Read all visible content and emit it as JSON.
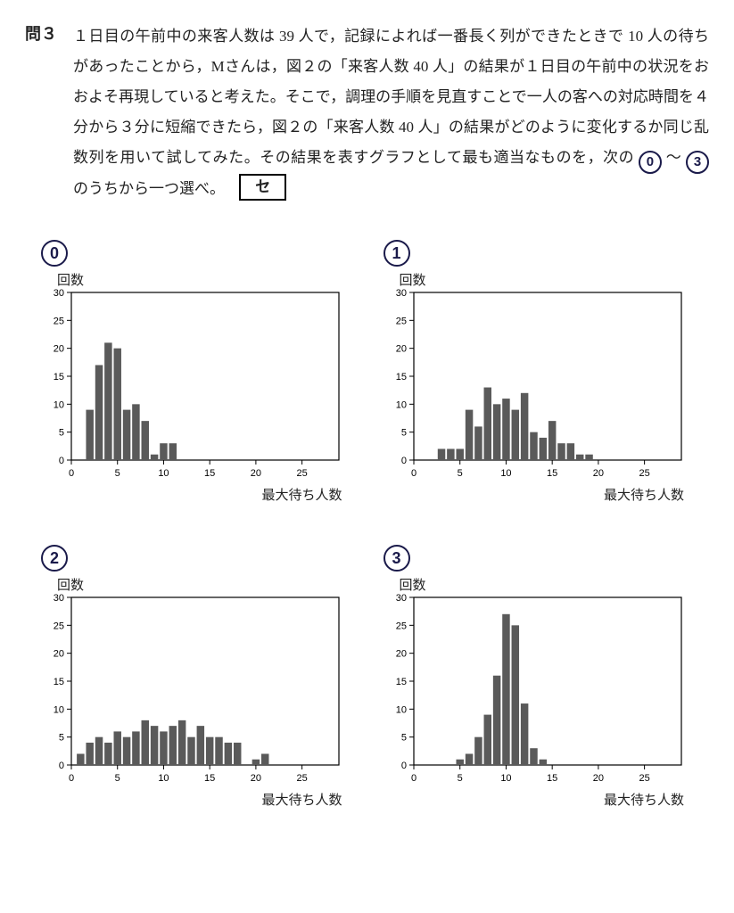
{
  "problem": {
    "label": "問３",
    "text_parts": [
      "１日目の午前中の来客人数は 39 人で，記録によれば一番長く列ができたときで 10 人の待ちがあったことから，Mさんは，図２の「来客人数 40 人」の結果が１日目の午前中の状況をおおよそ再現していると考えた。そこで，調理の手順を見直すことで一人の客への対応時間を４分から３分に短縮できたら，図２の「来客人数 40 人」の結果がどのように変化するか同じ乱数列を用いて試してみた。その結果を表すグラフとして最も適当なものを，次の ",
      " ～ ",
      " のうちから一つ選べ。"
    ],
    "option_start": "0",
    "option_end": "3",
    "answer_box": "セ"
  },
  "charts": {
    "ylabel": "回数",
    "xlabel": "最大待ち人数",
    "xlim": [
      0,
      29
    ],
    "ylim": [
      0,
      30
    ],
    "xticks": [
      0,
      5,
      10,
      15,
      20,
      25
    ],
    "yticks": [
      0,
      5,
      10,
      15,
      20,
      25,
      30
    ],
    "bar_color": "#5a5a5a",
    "axis_color": "#000000",
    "bg_color": "#ffffff",
    "tick_font_size": 11,
    "options": [
      {
        "label": "0",
        "bars": [
          {
            "x": 2,
            "y": 9
          },
          {
            "x": 3,
            "y": 17
          },
          {
            "x": 4,
            "y": 21
          },
          {
            "x": 5,
            "y": 20
          },
          {
            "x": 6,
            "y": 9
          },
          {
            "x": 7,
            "y": 10
          },
          {
            "x": 8,
            "y": 7
          },
          {
            "x": 9,
            "y": 1
          },
          {
            "x": 10,
            "y": 3
          },
          {
            "x": 11,
            "y": 3
          }
        ]
      },
      {
        "label": "1",
        "bars": [
          {
            "x": 3,
            "y": 2
          },
          {
            "x": 4,
            "y": 2
          },
          {
            "x": 5,
            "y": 2
          },
          {
            "x": 6,
            "y": 9
          },
          {
            "x": 7,
            "y": 6
          },
          {
            "x": 8,
            "y": 13
          },
          {
            "x": 9,
            "y": 10
          },
          {
            "x": 10,
            "y": 11
          },
          {
            "x": 11,
            "y": 9
          },
          {
            "x": 12,
            "y": 12
          },
          {
            "x": 13,
            "y": 5
          },
          {
            "x": 14,
            "y": 4
          },
          {
            "x": 15,
            "y": 7
          },
          {
            "x": 16,
            "y": 3
          },
          {
            "x": 17,
            "y": 3
          },
          {
            "x": 18,
            "y": 1
          },
          {
            "x": 19,
            "y": 1
          }
        ]
      },
      {
        "label": "2",
        "bars": [
          {
            "x": 1,
            "y": 2
          },
          {
            "x": 2,
            "y": 4
          },
          {
            "x": 3,
            "y": 5
          },
          {
            "x": 4,
            "y": 4
          },
          {
            "x": 5,
            "y": 6
          },
          {
            "x": 6,
            "y": 5
          },
          {
            "x": 7,
            "y": 6
          },
          {
            "x": 8,
            "y": 8
          },
          {
            "x": 9,
            "y": 7
          },
          {
            "x": 10,
            "y": 6
          },
          {
            "x": 11,
            "y": 7
          },
          {
            "x": 12,
            "y": 8
          },
          {
            "x": 13,
            "y": 5
          },
          {
            "x": 14,
            "y": 7
          },
          {
            "x": 15,
            "y": 5
          },
          {
            "x": 16,
            "y": 5
          },
          {
            "x": 17,
            "y": 4
          },
          {
            "x": 18,
            "y": 4
          },
          {
            "x": 20,
            "y": 1
          },
          {
            "x": 21,
            "y": 2
          }
        ]
      },
      {
        "label": "3",
        "bars": [
          {
            "x": 5,
            "y": 1
          },
          {
            "x": 6,
            "y": 2
          },
          {
            "x": 7,
            "y": 5
          },
          {
            "x": 8,
            "y": 9
          },
          {
            "x": 9,
            "y": 16
          },
          {
            "x": 10,
            "y": 27
          },
          {
            "x": 11,
            "y": 25
          },
          {
            "x": 12,
            "y": 11
          },
          {
            "x": 13,
            "y": 3
          },
          {
            "x": 14,
            "y": 1
          }
        ]
      }
    ]
  }
}
